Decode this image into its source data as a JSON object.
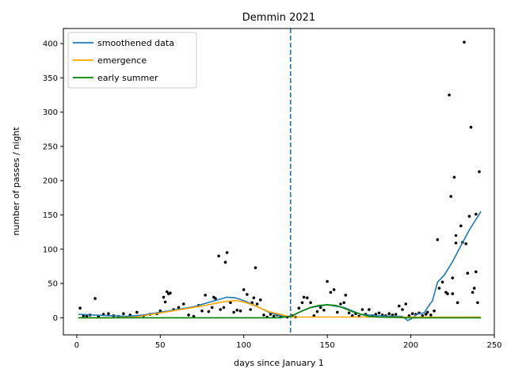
{
  "chart_data": {
    "type": "line",
    "title": "Demmin 2021",
    "xlabel": "days since January 1",
    "ylabel": "number of passes / night",
    "xlim": [
      -8,
      250
    ],
    "ylim": [
      -25,
      422
    ],
    "xticks": [
      0,
      50,
      100,
      150,
      200,
      250
    ],
    "yticks": [
      0,
      50,
      100,
      150,
      200,
      250,
      300,
      350,
      400
    ],
    "grid": false,
    "legend": "upper-left",
    "vline": {
      "x": 128,
      "style": "dashed",
      "color": "#1f77b4"
    },
    "series": [
      {
        "name": "smoothened data",
        "color": "#1f77b4",
        "x": [
          1,
          10,
          20,
          30,
          40,
          50,
          60,
          70,
          80,
          90,
          95,
          100,
          110,
          115,
          120,
          125,
          128,
          135,
          140,
          150,
          160,
          170,
          180,
          190,
          195,
          198,
          200,
          203,
          205,
          208,
          210,
          213,
          216,
          220,
          225,
          230,
          235,
          242
        ],
        "y": [
          5,
          4,
          3,
          2,
          4,
          8,
          12,
          16,
          23,
          30,
          29,
          25,
          14,
          8,
          4,
          2,
          2,
          10,
          15,
          19,
          15,
          5,
          3,
          2,
          2,
          -4,
          -2,
          4,
          6,
          7,
          15,
          25,
          52,
          62,
          82,
          105,
          128,
          155
        ]
      },
      {
        "name": "emergence",
        "color": "#ffa500",
        "x": [
          1,
          20,
          35,
          45,
          55,
          65,
          75,
          85,
          90,
          95,
          100,
          105,
          110,
          115,
          120,
          125,
          128,
          140,
          150,
          160,
          170,
          180,
          200,
          242
        ],
        "y": [
          0,
          0,
          1,
          5,
          9,
          13,
          17,
          22,
          24,
          25,
          23,
          19,
          14,
          9,
          6,
          3,
          1,
          1,
          1,
          1,
          1,
          1,
          1,
          1
        ]
      },
      {
        "name": "early summer",
        "color": "#008000",
        "x": [
          1,
          120,
          128,
          135,
          140,
          145,
          150,
          155,
          160,
          165,
          170,
          175,
          180,
          200,
          242
        ],
        "y": [
          0,
          0,
          2,
          10,
          15,
          18,
          19,
          18,
          14,
          9,
          5,
          2,
          1,
          0,
          0
        ]
      }
    ],
    "scatter": {
      "color": "#000000",
      "points": [
        [
          2,
          14
        ],
        [
          4,
          3
        ],
        [
          6,
          2
        ],
        [
          8,
          4
        ],
        [
          11,
          28
        ],
        [
          13,
          2
        ],
        [
          16,
          5
        ],
        [
          19,
          6
        ],
        [
          22,
          3
        ],
        [
          25,
          2
        ],
        [
          28,
          6
        ],
        [
          32,
          4
        ],
        [
          36,
          8
        ],
        [
          40,
          3
        ],
        [
          44,
          5
        ],
        [
          48,
          6
        ],
        [
          50,
          10
        ],
        [
          52,
          30
        ],
        [
          53,
          23
        ],
        [
          54,
          38
        ],
        [
          55,
          35
        ],
        [
          56,
          36
        ],
        [
          58,
          12
        ],
        [
          61,
          15
        ],
        [
          64,
          20
        ],
        [
          67,
          4
        ],
        [
          70,
          2
        ],
        [
          73,
          18
        ],
        [
          75,
          10
        ],
        [
          77,
          33
        ],
        [
          79,
          9
        ],
        [
          81,
          15
        ],
        [
          82,
          30
        ],
        [
          83,
          28
        ],
        [
          85,
          90
        ],
        [
          86,
          12
        ],
        [
          88,
          15
        ],
        [
          89,
          81
        ],
        [
          90,
          95
        ],
        [
          92,
          22
        ],
        [
          94,
          8
        ],
        [
          96,
          11
        ],
        [
          98,
          10
        ],
        [
          100,
          41
        ],
        [
          102,
          34
        ],
        [
          104,
          12
        ],
        [
          105,
          22
        ],
        [
          106,
          29
        ],
        [
          107,
          73
        ],
        [
          108,
          20
        ],
        [
          110,
          26
        ],
        [
          112,
          4
        ],
        [
          114,
          1
        ],
        [
          116,
          5
        ],
        [
          118,
          2
        ],
        [
          120,
          4
        ],
        [
          122,
          1
        ],
        [
          124,
          2
        ],
        [
          126,
          1
        ],
        [
          129,
          3
        ],
        [
          131,
          1
        ],
        [
          133,
          14
        ],
        [
          135,
          22
        ],
        [
          136,
          30
        ],
        [
          138,
          29
        ],
        [
          140,
          22
        ],
        [
          142,
          3
        ],
        [
          144,
          9
        ],
        [
          146,
          15
        ],
        [
          148,
          11
        ],
        [
          150,
          53
        ],
        [
          152,
          37
        ],
        [
          154,
          41
        ],
        [
          156,
          8
        ],
        [
          158,
          20
        ],
        [
          160,
          22
        ],
        [
          161,
          33
        ],
        [
          163,
          7
        ],
        [
          165,
          3
        ],
        [
          167,
          6
        ],
        [
          169,
          2
        ],
        [
          171,
          12
        ],
        [
          173,
          5
        ],
        [
          175,
          12
        ],
        [
          177,
          3
        ],
        [
          179,
          5
        ],
        [
          181,
          7
        ],
        [
          183,
          4
        ],
        [
          185,
          3
        ],
        [
          187,
          6
        ],
        [
          189,
          4
        ],
        [
          191,
          5
        ],
        [
          193,
          17
        ],
        [
          195,
          12
        ],
        [
          197,
          20
        ],
        [
          199,
          3
        ],
        [
          201,
          6
        ],
        [
          203,
          5
        ],
        [
          205,
          7
        ],
        [
          207,
          3
        ],
        [
          209,
          5
        ],
        [
          210,
          8
        ],
        [
          212,
          4
        ],
        [
          214,
          10
        ],
        [
          216,
          114
        ],
        [
          217,
          43
        ],
        [
          219,
          52
        ],
        [
          221,
          37
        ],
        [
          222,
          35
        ],
        [
          223,
          325
        ],
        [
          224,
          177
        ],
        [
          225,
          35
        ],
        [
          226,
          205
        ],
        [
          227,
          109
        ],
        [
          228,
          22
        ],
        [
          230,
          134
        ],
        [
          232,
          402
        ],
        [
          233,
          108
        ],
        [
          234,
          65
        ],
        [
          235,
          148
        ],
        [
          236,
          278
        ],
        [
          237,
          37
        ],
        [
          238,
          43
        ],
        [
          239,
          151
        ],
        [
          240,
          22
        ],
        [
          241,
          213
        ],
        [
          239,
          67
        ],
        [
          231,
          110
        ],
        [
          227,
          120
        ],
        [
          225,
          58
        ]
      ]
    }
  }
}
